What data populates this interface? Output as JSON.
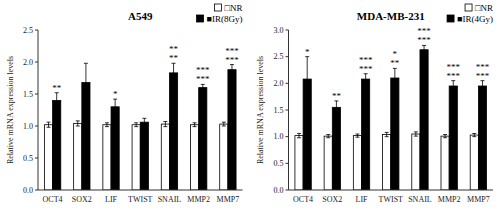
{
  "chart_data": [
    {
      "type": "bar",
      "title": "A549",
      "y_label": "Relative mRNA expression levels",
      "categories": [
        "OCT4",
        "SOX2",
        "LIF",
        "TWIST",
        "SNAIL",
        "MMP2",
        "MMP7"
      ],
      "series": [
        {
          "name": "□NR",
          "color": "white",
          "values": [
            1.02,
            1.04,
            1.02,
            1.02,
            1.03,
            1.02,
            1.03
          ],
          "errors": [
            0.04,
            0.04,
            0.03,
            0.03,
            0.04,
            0.03,
            0.03
          ]
        },
        {
          "name": "■IR(8Gy)",
          "color": "black",
          "values": [
            1.4,
            1.68,
            1.3,
            1.06,
            1.83,
            1.6,
            1.88
          ],
          "errors": [
            0.12,
            0.3,
            0.12,
            0.06,
            0.15,
            0.05,
            0.08
          ],
          "annotations": [
            [
              "**"
            ],
            [],
            [
              "*"
            ],
            [],
            [
              "**",
              "**"
            ],
            [
              "***",
              "***"
            ],
            [
              "***",
              "***"
            ]
          ]
        }
      ],
      "ylim": [
        0.0,
        2.5
      ],
      "yticks": [
        {
          "value": 0.0,
          "label": "0.0"
        },
        0.5,
        {
          "value": 1.0,
          "label": "1.0"
        },
        1.5,
        {
          "value": 2.0,
          "label": "2.0"
        },
        2.5
      ],
      "grid": false,
      "legend": "upper right"
    },
    {
      "type": "bar",
      "title": "MDA-MB-231",
      "y_label": "Relative mRNA expression levels",
      "categories": [
        "OCT4",
        "SOX2",
        "LIF",
        "TWIST",
        "SNAIL",
        "MMP2",
        "MMP7"
      ],
      "series": [
        {
          "name": "□NR",
          "color": "white",
          "values": [
            1.02,
            1.01,
            1.02,
            1.04,
            1.05,
            1.01,
            1.03
          ],
          "errors": [
            0.04,
            0.03,
            0.03,
            0.04,
            0.04,
            0.03,
            0.03
          ]
        },
        {
          "name": "■IR(4Gy)",
          "color": "black",
          "values": [
            2.08,
            1.55,
            2.08,
            2.1,
            2.63,
            1.95,
            1.95
          ],
          "errors": [
            0.42,
            0.12,
            0.1,
            0.18,
            0.08,
            0.1,
            0.1
          ],
          "annotations": [
            [
              "*"
            ],
            [
              "**"
            ],
            [
              "***",
              "***"
            ],
            [
              "**",
              "*"
            ],
            [
              "***",
              "***"
            ],
            [
              "***",
              "***"
            ],
            [
              "***",
              "***"
            ]
          ]
        }
      ],
      "ylim": [
        0.0,
        3.0
      ],
      "yticks": [
        {
          "value": 0.0,
          "label": "0.0"
        },
        0.5,
        {
          "value": 1.0,
          "label": "1.0"
        },
        1.5,
        {
          "value": 2.0,
          "label": "2.0"
        },
        2.5,
        {
          "value": 3.0,
          "label": "3.0"
        }
      ],
      "grid": false,
      "legend": "upper right"
    }
  ]
}
